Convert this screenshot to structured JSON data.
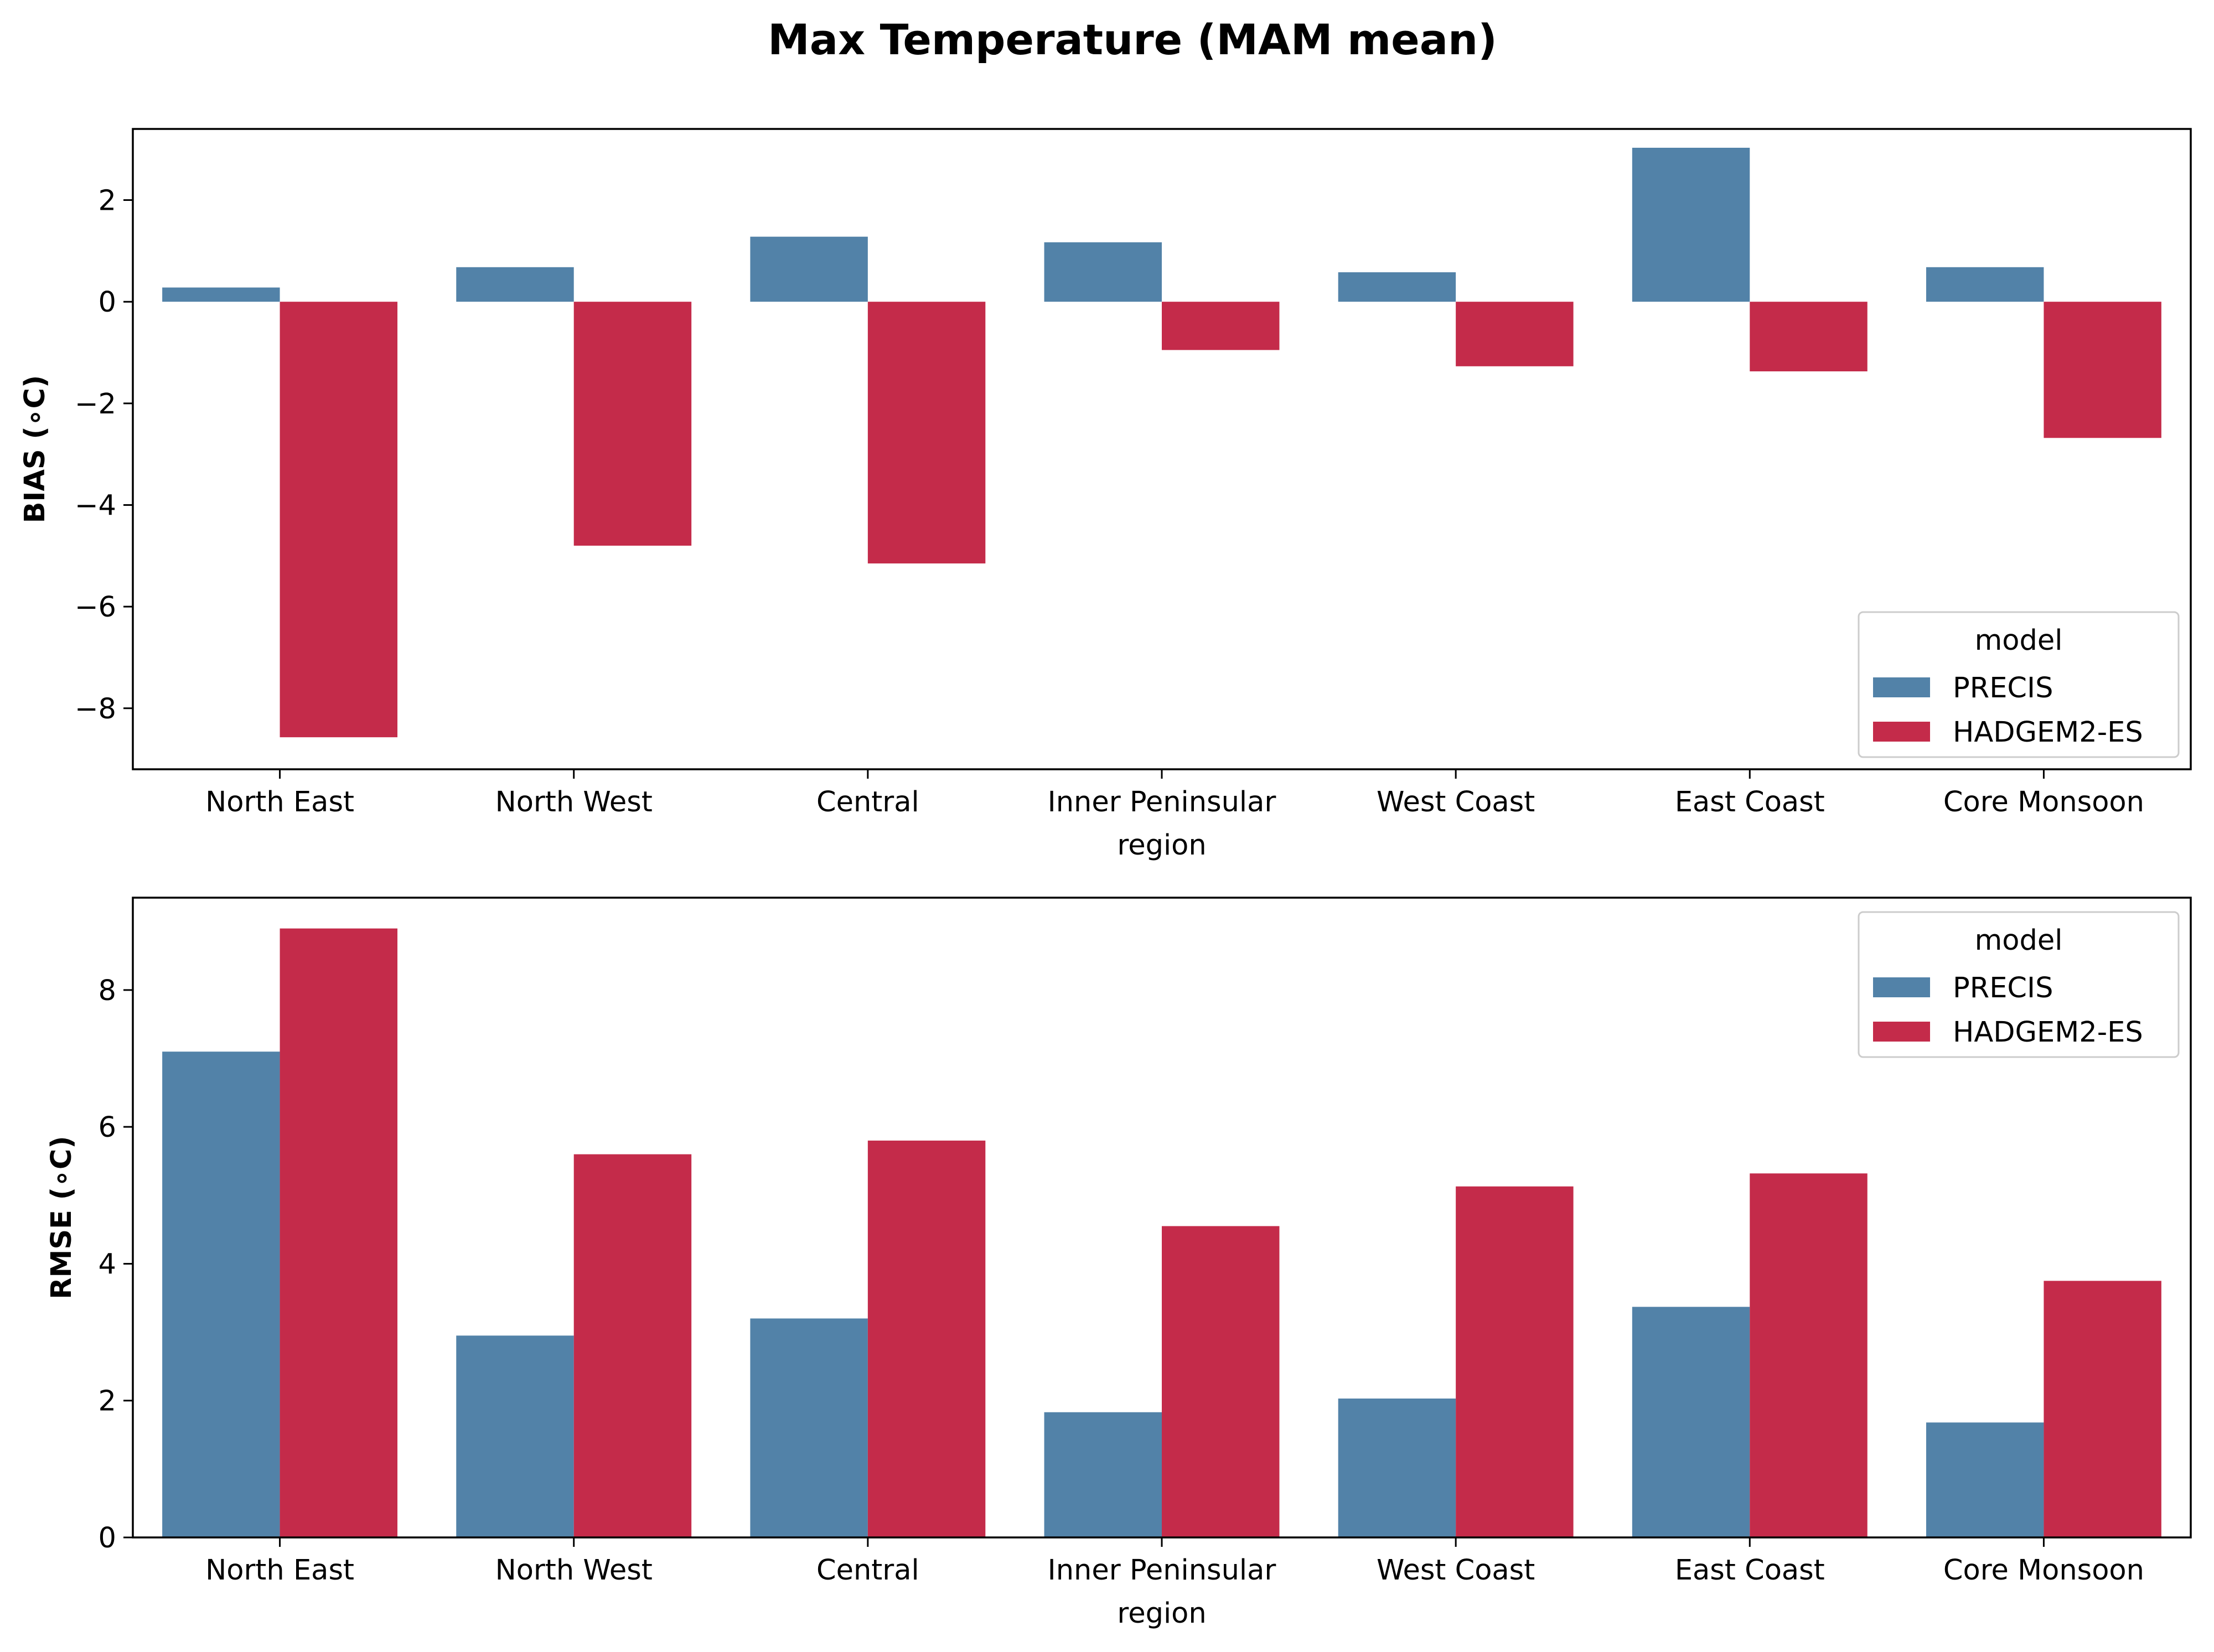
{
  "title": "Max Temperature (MAM mean)",
  "colors": {
    "PRECIS": "#5282a8",
    "HADGEM2-ES": "#c42b4a"
  },
  "chart_data": [
    {
      "type": "bar",
      "categories": [
        "North East",
        "North West",
        "Central",
        "Inner Peninsular",
        "West Coast",
        "East Coast",
        "Core Monsoon"
      ],
      "xlabel": "region",
      "ylabel": "BIAS (∘C)",
      "ylim": [
        -9.2,
        3.4
      ],
      "yticks": [
        -8,
        -6,
        -4,
        -2,
        0,
        2
      ],
      "legend": {
        "title": "model",
        "placement": "lower-right"
      },
      "series": [
        {
          "name": "PRECIS",
          "values": [
            0.28,
            0.68,
            1.28,
            1.17,
            0.58,
            3.03,
            0.68
          ]
        },
        {
          "name": "HADGEM2-ES",
          "values": [
            -8.57,
            -4.8,
            -5.15,
            -0.95,
            -1.27,
            -1.37,
            -2.68
          ]
        }
      ]
    },
    {
      "type": "bar",
      "categories": [
        "North East",
        "North West",
        "Central",
        "Inner Peninsular",
        "West Coast",
        "East Coast",
        "Core Monsoon"
      ],
      "xlabel": "region",
      "ylabel": "RMSE (∘C)",
      "ylim": [
        0,
        9.35
      ],
      "yticks": [
        0,
        2,
        4,
        6,
        8
      ],
      "legend": {
        "title": "model",
        "placement": "upper-right"
      },
      "series": [
        {
          "name": "PRECIS",
          "values": [
            7.1,
            2.95,
            3.2,
            1.83,
            2.03,
            3.37,
            1.68
          ]
        },
        {
          "name": "HADGEM2-ES",
          "values": [
            8.9,
            5.6,
            5.8,
            4.55,
            5.13,
            5.32,
            3.75
          ]
        }
      ]
    }
  ]
}
